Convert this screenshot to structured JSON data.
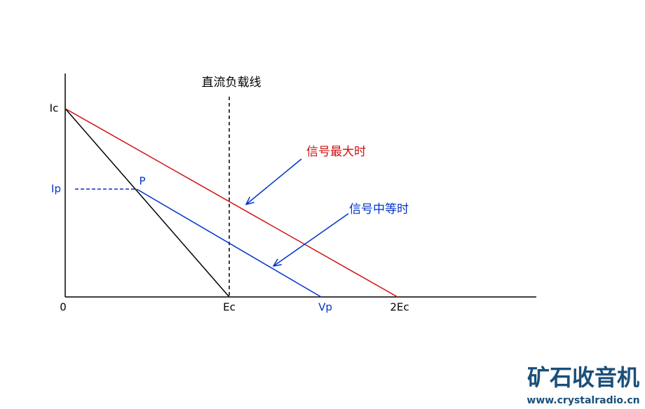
{
  "diagram": {
    "dc_load_line_label": "直流负载线",
    "y_labels": {
      "ic": "Ic",
      "ip": "Ip"
    },
    "point_label": "P",
    "max_signal_label": "信号最大时",
    "mid_signal_label": "信号中等时",
    "x_labels": {
      "origin": "0",
      "ec": "Ec",
      "vp": "Vp",
      "two_ec": "2Ec"
    }
  },
  "watermark": {
    "title": "矿石收音机",
    "url": "www.crystalradio.cn"
  }
}
